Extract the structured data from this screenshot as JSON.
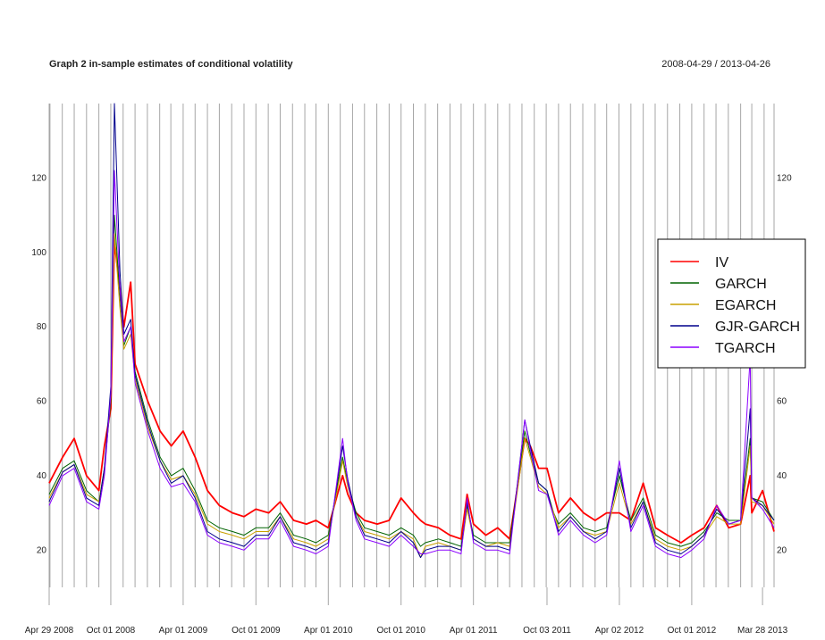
{
  "chart_data": {
    "type": "line",
    "title": "Graph 2 in-sample estimates of conditional volatility",
    "date_range": "2008-04-29 / 2013-04-26",
    "x_range": [
      "2008-04-29",
      "2013-04-26"
    ],
    "ylim": [
      10,
      140
    ],
    "y_ticks": [
      20,
      40,
      60,
      80,
      100,
      120
    ],
    "x_tick_labels": [
      {
        "date": "2008-04-29",
        "label": "Apr 29 2008"
      },
      {
        "date": "2008-10-01",
        "label": "Oct 01 2008"
      },
      {
        "date": "2009-04-01",
        "label": "Apr 01 2009"
      },
      {
        "date": "2009-10-01",
        "label": "Oct 01 2009"
      },
      {
        "date": "2010-04-01",
        "label": "Apr 01 2010"
      },
      {
        "date": "2010-10-01",
        "label": "Oct 01 2010"
      },
      {
        "date": "2011-04-01",
        "label": "Apr 01 2011"
      },
      {
        "date": "2011-10-03",
        "label": "Oct 03 2011"
      },
      {
        "date": "2012-04-02",
        "label": "Apr 02 2012"
      },
      {
        "date": "2012-10-01",
        "label": "Oct 01 2012"
      },
      {
        "date": "2013-03-28",
        "label": "Mar 28 2013"
      }
    ],
    "grid": "vertical monthly lines",
    "legend_position": "right",
    "x": [
      "2008-04-29",
      "2008-06-02",
      "2008-07-01",
      "2008-08-01",
      "2008-09-01",
      "2008-09-15",
      "2008-10-01",
      "2008-10-10",
      "2008-10-24",
      "2008-11-03",
      "2008-11-20",
      "2008-12-01",
      "2009-01-02",
      "2009-02-02",
      "2009-03-02",
      "2009-04-01",
      "2009-05-01",
      "2009-06-01",
      "2009-07-01",
      "2009-08-03",
      "2009-09-01",
      "2009-10-01",
      "2009-11-02",
      "2009-12-01",
      "2010-01-04",
      "2010-02-05",
      "2010-03-01",
      "2010-04-01",
      "2010-05-07",
      "2010-05-20",
      "2010-06-10",
      "2010-07-01",
      "2010-08-02",
      "2010-09-01",
      "2010-10-01",
      "2010-11-01",
      "2010-11-19",
      "2010-12-01",
      "2011-01-03",
      "2011-02-01",
      "2011-03-01",
      "2011-03-16",
      "2011-04-01",
      "2011-05-02",
      "2011-06-01",
      "2011-07-01",
      "2011-08-08",
      "2011-08-22",
      "2011-09-12",
      "2011-10-03",
      "2011-10-20",
      "2011-11-01",
      "2011-12-01",
      "2012-01-03",
      "2012-02-01",
      "2012-03-01",
      "2012-04-02",
      "2012-05-01",
      "2012-06-01",
      "2012-07-02",
      "2012-08-01",
      "2012-09-04",
      "2012-10-01",
      "2012-11-01",
      "2012-12-03",
      "2013-01-02",
      "2013-02-01",
      "2013-02-25",
      "2013-03-01",
      "2013-03-28",
      "2013-04-26"
    ],
    "series": [
      {
        "name": "IV",
        "color": "#ff0000",
        "width": 1.8,
        "values": [
          38,
          45,
          50,
          40,
          36,
          48,
          58,
          103,
          90,
          80,
          92,
          70,
          60,
          52,
          48,
          52,
          45,
          36,
          32,
          30,
          29,
          31,
          30,
          33,
          28,
          27,
          28,
          26,
          40,
          35,
          30,
          28,
          27,
          28,
          34,
          30,
          28,
          27,
          26,
          24,
          23,
          35,
          27,
          24,
          26,
          23,
          50,
          48,
          42,
          42,
          35,
          30,
          34,
          30,
          28,
          30,
          30,
          28,
          38,
          26,
          24,
          22,
          24,
          26,
          32,
          26,
          27,
          40,
          30,
          36,
          25
        ]
      },
      {
        "name": "GARCH",
        "color": "#006400",
        "width": 1,
        "values": [
          35,
          42,
          44,
          36,
          33,
          42,
          60,
          110,
          88,
          75,
          80,
          68,
          55,
          45,
          40,
          42,
          36,
          28,
          26,
          25,
          24,
          26,
          26,
          30,
          24,
          23,
          22,
          24,
          45,
          38,
          30,
          26,
          25,
          24,
          26,
          24,
          21,
          22,
          23,
          22,
          21,
          32,
          24,
          22,
          22,
          22,
          52,
          46,
          38,
          36,
          30,
          27,
          30,
          26,
          25,
          26,
          40,
          28,
          34,
          24,
          22,
          21,
          22,
          25,
          30,
          28,
          28,
          50,
          34,
          33,
          28
        ]
      },
      {
        "name": "EGARCH",
        "color": "#c8a000",
        "width": 1,
        "values": [
          34,
          41,
          43,
          35,
          33,
          41,
          62,
          105,
          85,
          74,
          78,
          66,
          53,
          44,
          39,
          40,
          35,
          27,
          25,
          24,
          23,
          25,
          25,
          29,
          23,
          22,
          21,
          23,
          44,
          37,
          29,
          25,
          24,
          23,
          25,
          23,
          18,
          21,
          22,
          21,
          20,
          31,
          23,
          21,
          22,
          21,
          50,
          45,
          37,
          35,
          30,
          26,
          29,
          25,
          24,
          25,
          38,
          27,
          33,
          23,
          21,
          20,
          21,
          24,
          29,
          27,
          27,
          48,
          33,
          32,
          27
        ]
      },
      {
        "name": "GJR-GARCH",
        "color": "#00008b",
        "width": 1,
        "values": [
          33,
          41,
          43,
          34,
          32,
          42,
          64,
          140,
          95,
          78,
          82,
          67,
          54,
          44,
          38,
          40,
          34,
          25,
          23,
          22,
          21,
          24,
          24,
          29,
          22,
          21,
          20,
          22,
          48,
          39,
          29,
          24,
          23,
          22,
          25,
          22,
          18,
          20,
          21,
          21,
          20,
          33,
          23,
          21,
          21,
          20,
          55,
          48,
          38,
          36,
          29,
          25,
          29,
          25,
          23,
          25,
          42,
          26,
          33,
          22,
          20,
          19,
          21,
          24,
          31,
          27,
          28,
          58,
          34,
          32,
          28
        ]
      },
      {
        "name": "TGARCH",
        "color": "#8b00ff",
        "width": 1,
        "values": [
          32,
          40,
          42,
          33,
          31,
          40,
          62,
          122,
          90,
          76,
          80,
          65,
          52,
          42,
          37,
          38,
          33,
          24,
          22,
          21,
          20,
          23,
          23,
          28,
          21,
          20,
          19,
          21,
          50,
          38,
          28,
          23,
          22,
          21,
          24,
          21,
          19,
          19,
          20,
          20,
          19,
          34,
          22,
          20,
          20,
          19,
          55,
          47,
          36,
          35,
          29,
          24,
          28,
          24,
          22,
          24,
          44,
          25,
          32,
          21,
          19,
          18,
          20,
          23,
          32,
          27,
          28,
          72,
          34,
          31,
          26
        ]
      }
    ]
  }
}
